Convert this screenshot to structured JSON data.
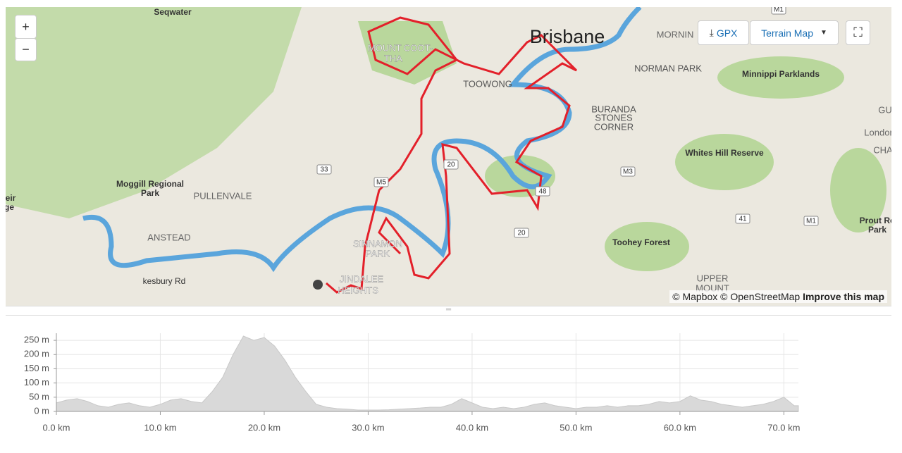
{
  "map": {
    "labels": [
      "Seqwater",
      "MOUNT COOT-",
      "THA",
      "Brisbane",
      "MORNIN",
      "NORMAN PARK",
      "Minnippi Parklands",
      "TOOWONG",
      "BURANDA",
      "STONES",
      "CORNER",
      "Whites Hill Reserve",
      "Moggill Regional",
      "Park",
      "PULLENVALE",
      "ANSTEAD",
      "SINNAMON",
      "PARK",
      "Toohey Forest",
      "UPPER",
      "MOUNT",
      "Prout Ro",
      "Park",
      "London",
      "CHA",
      "GU",
      "eir",
      "ge",
      "kesbury Rd",
      "JINDALEE",
      "HEIGHTS"
    ],
    "shields": [
      "33",
      "M5",
      "20",
      "48",
      "20",
      "M3",
      "41",
      "M1",
      "M1"
    ],
    "zoom_in": "+",
    "zoom_out": "−",
    "gpx": "GPX",
    "map_style": "Terrain Map",
    "attribution": "© Mapbox © OpenStreetMap",
    "improve": "Improve this map"
  },
  "elevation_chart": {
    "type": "area",
    "color": "#d9d9d9",
    "x": [
      0,
      1,
      2,
      3,
      4,
      5,
      6,
      7,
      8,
      9,
      10,
      11,
      12,
      13,
      14,
      15,
      16,
      17,
      18,
      19,
      20,
      21,
      22,
      23,
      24,
      25,
      26,
      27,
      28,
      29,
      30,
      31,
      32,
      33,
      34,
      35,
      36,
      37,
      38,
      39,
      40,
      41,
      42,
      43,
      44,
      45,
      46,
      47,
      48,
      49,
      50,
      51,
      52,
      53,
      54,
      55,
      56,
      57,
      58,
      59,
      60,
      61,
      62,
      63,
      64,
      65,
      66,
      67,
      68,
      69,
      70,
      71,
      71.4
    ],
    "values": [
      30,
      40,
      45,
      35,
      20,
      15,
      25,
      30,
      20,
      15,
      25,
      40,
      45,
      35,
      30,
      70,
      120,
      200,
      265,
      250,
      260,
      230,
      180,
      120,
      70,
      25,
      15,
      10,
      8,
      5,
      5,
      5,
      6,
      8,
      10,
      12,
      15,
      15,
      25,
      45,
      30,
      15,
      10,
      15,
      10,
      15,
      25,
      30,
      20,
      15,
      10,
      15,
      15,
      20,
      15,
      20,
      20,
      25,
      35,
      30,
      35,
      55,
      40,
      35,
      25,
      20,
      15,
      20,
      25,
      35,
      50,
      20,
      20
    ],
    "xlim": [
      0,
      71.4
    ],
    "ylim": [
      0,
      275
    ],
    "xticks": [
      {
        "value": 0,
        "label": "0.0 km"
      },
      {
        "value": 10,
        "label": "10.0 km"
      },
      {
        "value": 20,
        "label": "20.0 km"
      },
      {
        "value": 30,
        "label": "30.0 km"
      },
      {
        "value": 40,
        "label": "40.0 km"
      },
      {
        "value": 50,
        "label": "50.0 km"
      },
      {
        "value": 60,
        "label": "60.0 km"
      },
      {
        "value": 70,
        "label": "70.0 km"
      }
    ],
    "yticks": [
      {
        "value": 0,
        "label": "0 m"
      },
      {
        "value": 50,
        "label": "50 m"
      },
      {
        "value": 100,
        "label": "100 m"
      },
      {
        "value": 150,
        "label": "150 m"
      },
      {
        "value": 200,
        "label": "200 m"
      },
      {
        "value": 250,
        "label": "250 m"
      }
    ],
    "grid": true
  }
}
